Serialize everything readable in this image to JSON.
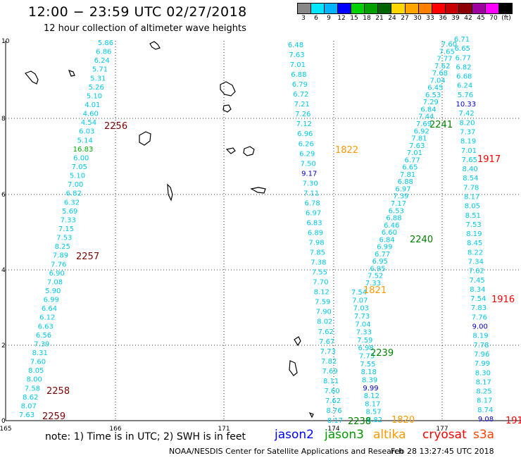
{
  "header": {
    "title": "12:00 − 23:59 UTC 02/27/2018",
    "subtitle": "12 hour collection of altimeter wave heights"
  },
  "legend": {
    "labels": [
      "3",
      "6",
      "9",
      "12",
      "15",
      "18",
      "21",
      "24",
      "27",
      "30",
      "33",
      "36",
      "39",
      "42",
      "45",
      "70",
      "(ft)"
    ],
    "colors": [
      "#888888",
      "#00e6ff",
      "#00b4ff",
      "#0000ff",
      "#00d200",
      "#00a000",
      "#006400",
      "#ffd700",
      "#ffa500",
      "#ff7f00",
      "#ff0000",
      "#c80000",
      "#8b0000",
      "#a000a0",
      "#ff00ff",
      "#000000"
    ]
  },
  "axes": {
    "x_ticks": [
      "165",
      "166",
      "171",
      "174",
      "177"
    ],
    "y_ticks": [
      "0",
      "2",
      "4",
      "6",
      "8",
      "10"
    ]
  },
  "tracks": {
    "color": "#00c8e6",
    "low_color": "#0000c8",
    "mid_color": "#00aa00",
    "t1": [
      "5.86",
      "6.86",
      "6.24",
      "5.71",
      "5.31",
      "5.26",
      "5.10",
      "4.01",
      "4.60",
      "4.54",
      "6.03",
      "5.14",
      "16.83",
      "6.00",
      "7.05",
      "5.10",
      "7.00",
      "6.82",
      "6.32",
      "5.69",
      "7.33",
      "7.15",
      "7.53",
      "8.25",
      "7.89",
      "7.76",
      "6.90",
      "7.08",
      "5.90",
      "6.99",
      "6.64",
      "6.12",
      "6.63",
      "6.56",
      "7.39",
      "8.31",
      "7.60",
      "8.05",
      "8.00",
      "7.58",
      "8.62",
      "8.07",
      "7.63"
    ],
    "t2": [
      "6.48",
      "7.63",
      "7.01",
      "6.88",
      "6.79",
      "6.72",
      "7.21",
      "7.26",
      "7.12",
      "6.96",
      "6.26",
      "6.29",
      "7.50",
      "9.17",
      "7.30",
      "7.11",
      "6.78",
      "6.97",
      "6.83",
      "6.89",
      "7.98",
      "7.85",
      "7.38",
      "7.55",
      "7.70",
      "8.12",
      "7.59",
      "7.90",
      "8.02",
      "7.62",
      "7.67",
      "7.73",
      "7.82",
      "7.69",
      "8.11",
      "7.60",
      "7.62",
      "8.76",
      "8.17"
    ],
    "t3": [
      "7.54",
      "7.07",
      "7.03",
      "7.73",
      "7.04",
      "7.33",
      "7.59",
      "6.98",
      "7.73",
      "7.55",
      "8.18",
      "8.39",
      "9.99",
      "8.12",
      "8.17",
      "8.57",
      "8.82"
    ],
    "t4": [
      "7.60",
      "7.65",
      "7.77",
      "7.62",
      "7.68",
      "7.04",
      "6.45",
      "6.53",
      "7.29",
      "6.84",
      "7.44",
      "7.69",
      "6.92",
      "7.81",
      "7.63",
      "7.01",
      "6.77",
      "6.65",
      "7.81",
      "6.88",
      "6.97",
      "7.39",
      "7.17",
      "6.53",
      "6.88",
      "6.46",
      "6.60",
      "6.84",
      "6.99",
      "6.77",
      "6.95",
      "6.95",
      "7.52",
      "7.33"
    ],
    "t5": [
      "6.71",
      "6.65",
      "6.77",
      "6.82",
      "6.68",
      "6.24",
      "5.76",
      "10.33",
      "7.42",
      "8.20",
      "7.37",
      "8.19",
      "7.01",
      "7.65",
      "8.40",
      "8.54",
      "7.78",
      "8.17",
      "8.05",
      "8.51",
      "7.53",
      "8.19",
      "8.45",
      "8.22",
      "7.34",
      "7.62",
      "7.45",
      "8.34",
      "7.54",
      "7.83",
      "7.76",
      "9.00",
      "8.19",
      "7.78",
      "7.96",
      "7.99",
      "8.30",
      "8.17",
      "8.25",
      "8.17",
      "8.74",
      "9.08"
    ]
  },
  "time_labels": [
    {
      "text": "2256",
      "color": "#7a0000"
    },
    {
      "text": "2257",
      "color": "#7a0000"
    },
    {
      "text": "2258",
      "color": "#7a0000"
    },
    {
      "text": "2259",
      "color": "#7a0000"
    },
    {
      "text": "1822",
      "color": "#ff9900"
    },
    {
      "text": "1821",
      "color": "#ff9900"
    },
    {
      "text": "1820",
      "color": "#ff9900"
    },
    {
      "text": "2241",
      "color": "#008000"
    },
    {
      "text": "2240",
      "color": "#008000"
    },
    {
      "text": "2239",
      "color": "#008000"
    },
    {
      "text": "2238",
      "color": "#008000"
    },
    {
      "text": "1917",
      "color": "#ff0000"
    },
    {
      "text": "1916",
      "color": "#ff0000"
    },
    {
      "text": "191",
      "color": "#ff0000"
    }
  ],
  "footer": {
    "note": "note:  1) Time is in UTC;  2) SWH is in feet",
    "satellites": [
      {
        "name": "jason2",
        "color": "#0000ff"
      },
      {
        "name": "jason3",
        "color": "#009900"
      },
      {
        "name": "altika",
        "color": "#ff9900"
      },
      {
        "name": "cryosat",
        "color": "#ff0000"
      },
      {
        "name": "s3a",
        "color": "#ff4400"
      }
    ],
    "credit": "NOAA/NESDIS Center for Satellite Applications and Research",
    "timestamp": "Feb 28 13:27:45 UTC 2018"
  }
}
